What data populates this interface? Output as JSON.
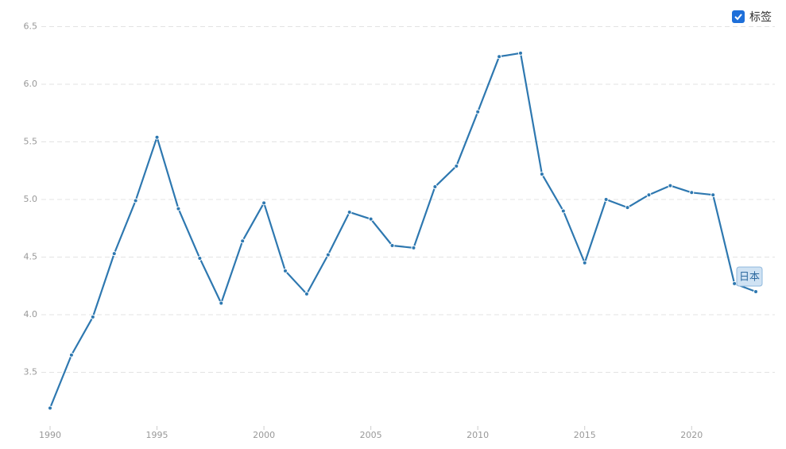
{
  "chart_data": {
    "type": "line",
    "label_toggle": "标签",
    "x": [
      1990,
      1991,
      1992,
      1993,
      1994,
      1995,
      1996,
      1997,
      1998,
      1999,
      2000,
      2001,
      2002,
      2003,
      2004,
      2005,
      2006,
      2007,
      2008,
      2009,
      2010,
      2011,
      2012,
      2013,
      2014,
      2015,
      2016,
      2017,
      2018,
      2019,
      2020,
      2021,
      2022,
      2023
    ],
    "series": [
      {
        "name": "日本",
        "color": "#2e78b0",
        "values": [
          3.19,
          3.65,
          3.98,
          4.53,
          4.99,
          5.54,
          4.92,
          4.49,
          4.1,
          4.64,
          4.97,
          4.38,
          4.18,
          4.52,
          4.89,
          4.83,
          4.6,
          4.58,
          5.11,
          5.29,
          5.76,
          6.24,
          6.27,
          5.22,
          4.9,
          4.45,
          5.0,
          4.93,
          5.04,
          5.12,
          5.06,
          5.04,
          4.27,
          4.2
        ]
      }
    ],
    "xlim": [
      1990,
      2023
    ],
    "xticks": [
      1990,
      1995,
      2000,
      2005,
      2010,
      2015,
      2020
    ],
    "ylim": [
      3.0,
      6.6
    ],
    "yticks": [
      3.5,
      {
        "value": 4,
        "label": "4.0"
      },
      4.5,
      {
        "value": 5,
        "label": "5.0"
      },
      5.5,
      {
        "value": 6,
        "label": "6.0"
      },
      6.5
    ],
    "grid": true
  }
}
